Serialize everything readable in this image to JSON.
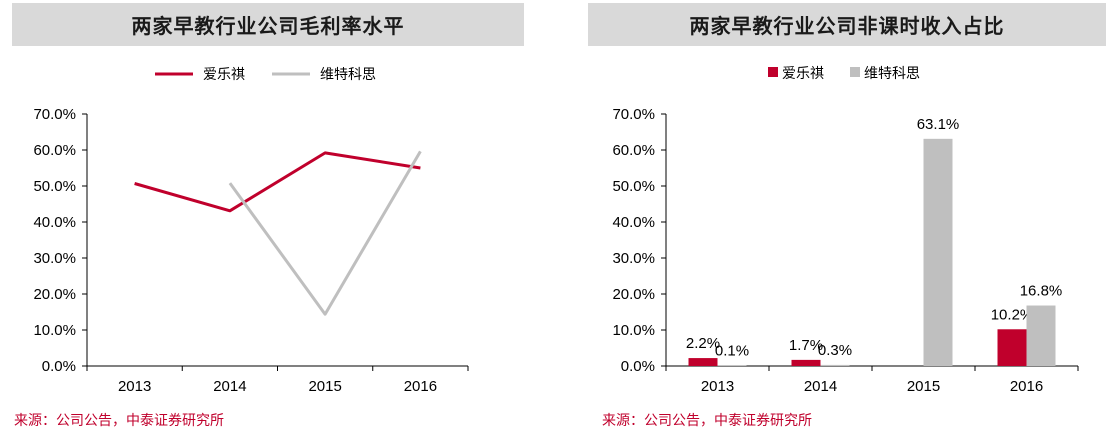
{
  "charts": [
    {
      "title": "两家早教行业公司毛利率水平",
      "source": "来源：公司公告，中泰证券研究所",
      "chart_data": {
        "type": "line",
        "title": "两家早教行业公司毛利率水平",
        "categories": [
          "2013",
          "2014",
          "2015",
          "2016"
        ],
        "ylim": [
          0,
          70
        ],
        "yticks": [
          "0.0%",
          "10.0%",
          "20.0%",
          "30.0%",
          "40.0%",
          "50.0%",
          "60.0%",
          "70.0%"
        ],
        "legend_position": "top",
        "series": [
          {
            "name": "爱乐祺",
            "color": "#c0002c",
            "values": [
              50.7,
              43.1,
              59.2,
              55.0
            ]
          },
          {
            "name": "维特科思",
            "color": "#bfbfbf",
            "values": [
              null,
              50.8,
              14.4,
              59.6
            ]
          }
        ]
      }
    },
    {
      "title": "两家早教行业公司非课时收入占比",
      "source": "来源：公司公告，中泰证券研究所",
      "chart_data": {
        "type": "bar",
        "title": "两家早教行业公司非课时收入占比",
        "categories": [
          "2013",
          "2014",
          "2015",
          "2016"
        ],
        "ylim": [
          0,
          70
        ],
        "yticks": [
          "0.0%",
          "10.0%",
          "20.0%",
          "30.0%",
          "40.0%",
          "50.0%",
          "60.0%",
          "70.0%"
        ],
        "legend_position": "top",
        "series": [
          {
            "name": "爱乐祺",
            "color": "#c0002c",
            "values": [
              2.2,
              1.7,
              0.0,
              10.2
            ],
            "labels": [
              "2.2%",
              "1.7%",
              "",
              "10.2%"
            ]
          },
          {
            "name": "维特科思",
            "color": "#bfbfbf",
            "values": [
              0.1,
              0.3,
              63.1,
              16.8
            ],
            "labels": [
              "0.1%",
              "0.3%",
              "63.1%",
              "16.8%"
            ]
          }
        ]
      }
    }
  ]
}
